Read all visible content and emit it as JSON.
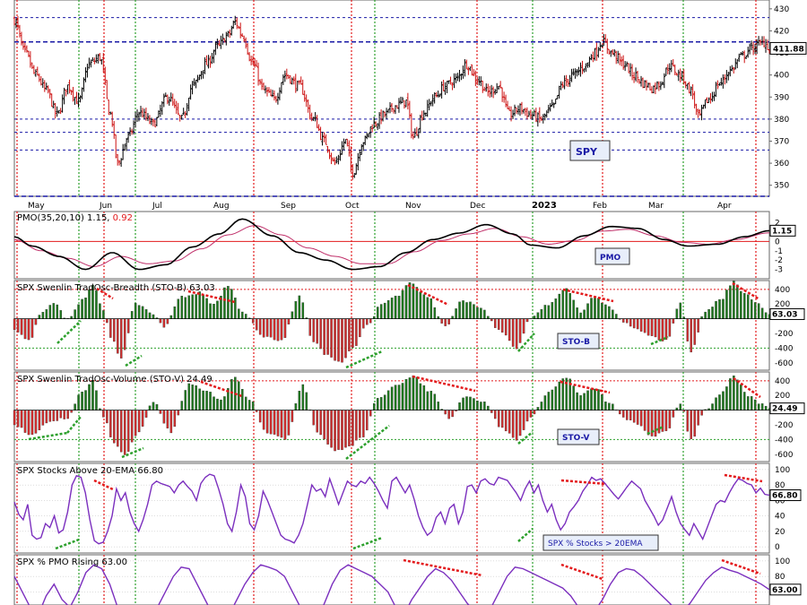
{
  "chart_data": [
    {
      "id": "spy",
      "type": "candlestick",
      "label": "SPY",
      "last_value": "411.88",
      "y_ticks": [
        350,
        360,
        370,
        380,
        390,
        400,
        410,
        420,
        430
      ],
      "ylim": [
        345,
        434
      ],
      "h_lines": [
        426,
        415,
        380,
        374,
        366,
        345
      ],
      "x_labels": [
        "May",
        "Jun",
        "Jul",
        "Aug",
        "Sep",
        "Oct",
        "Nov",
        "Dec",
        "2023",
        "Feb",
        "Mar",
        "Apr"
      ],
      "close_path": [
        [
          0,
          425
        ],
        [
          6,
          410
        ],
        [
          12,
          400
        ],
        [
          18,
          393
        ],
        [
          24,
          382
        ],
        [
          30,
          395
        ],
        [
          36,
          388
        ],
        [
          42,
          405
        ],
        [
          48,
          408
        ],
        [
          54,
          382
        ],
        [
          58,
          360
        ],
        [
          64,
          372
        ],
        [
          70,
          383
        ],
        [
          78,
          378
        ],
        [
          86,
          390
        ],
        [
          94,
          380
        ],
        [
          100,
          395
        ],
        [
          108,
          405
        ],
        [
          114,
          413
        ],
        [
          120,
          418
        ],
        [
          124,
          424
        ],
        [
          128,
          418
        ],
        [
          134,
          405
        ],
        [
          140,
          393
        ],
        [
          146,
          389
        ],
        [
          152,
          400
        ],
        [
          160,
          395
        ],
        [
          168,
          380
        ],
        [
          174,
          370
        ],
        [
          180,
          360
        ],
        [
          186,
          370
        ],
        [
          190,
          356
        ],
        [
          196,
          370
        ],
        [
          202,
          378
        ],
        [
          208,
          382
        ],
        [
          214,
          386
        ],
        [
          220,
          388
        ],
        [
          224,
          372
        ],
        [
          230,
          383
        ],
        [
          236,
          390
        ],
        [
          242,
          395
        ],
        [
          248,
          398
        ],
        [
          254,
          405
        ],
        [
          260,
          398
        ],
        [
          266,
          392
        ],
        [
          272,
          395
        ],
        [
          278,
          382
        ],
        [
          284,
          385
        ],
        [
          290,
          382
        ],
        [
          296,
          380
        ],
        [
          302,
          385
        ],
        [
          308,
          396
        ],
        [
          314,
          400
        ],
        [
          320,
          404
        ],
        [
          326,
          410
        ],
        [
          330,
          415
        ],
        [
          336,
          410
        ],
        [
          342,
          405
        ],
        [
          348,
          400
        ],
        [
          354,
          396
        ],
        [
          358,
          394
        ],
        [
          362,
          396
        ],
        [
          368,
          404
        ],
        [
          374,
          400
        ],
        [
          380,
          393
        ],
        [
          384,
          381
        ],
        [
          390,
          389
        ],
        [
          396,
          396
        ],
        [
          402,
          402
        ],
        [
          408,
          408
        ],
        [
          414,
          412
        ],
        [
          418,
          414
        ],
        [
          422,
          415
        ],
        [
          424,
          411
        ]
      ]
    },
    {
      "id": "pmo",
      "type": "line",
      "title_main": "PMO(35,20,10) 1.15, ",
      "title_red": "0.92",
      "label": "PMO",
      "last_value": "1.15",
      "y_ticks": [
        2,
        1,
        0,
        -1,
        -2,
        -3
      ],
      "ylim": [
        -4,
        3.2
      ],
      "zero_line": 0,
      "pmo": [
        [
          0,
          0.5
        ],
        [
          10,
          -0.5
        ],
        [
          25,
          -1.6
        ],
        [
          40,
          -3.0
        ],
        [
          55,
          -1.2
        ],
        [
          70,
          -3.0
        ],
        [
          85,
          -2.5
        ],
        [
          100,
          -0.6
        ],
        [
          115,
          0.8
        ],
        [
          128,
          2.4
        ],
        [
          145,
          0.6
        ],
        [
          160,
          -1.2
        ],
        [
          175,
          -2.0
        ],
        [
          190,
          -3.0
        ],
        [
          205,
          -2.7
        ],
        [
          220,
          -1.2
        ],
        [
          235,
          0.2
        ],
        [
          250,
          0.9
        ],
        [
          265,
          1.8
        ],
        [
          280,
          0.8
        ],
        [
          290,
          -0.4
        ],
        [
          305,
          -0.7
        ],
        [
          320,
          0.6
        ],
        [
          335,
          1.6
        ],
        [
          350,
          1.4
        ],
        [
          365,
          0.2
        ],
        [
          378,
          -0.5
        ],
        [
          395,
          -0.3
        ],
        [
          410,
          0.5
        ],
        [
          424,
          1.15
        ]
      ],
      "signal": [
        [
          0,
          0.2
        ],
        [
          15,
          -1.0
        ],
        [
          30,
          -1.8
        ],
        [
          45,
          -2.7
        ],
        [
          60,
          -1.6
        ],
        [
          75,
          -2.4
        ],
        [
          90,
          -2.1
        ],
        [
          105,
          -0.8
        ],
        [
          120,
          0.7
        ],
        [
          135,
          1.7
        ],
        [
          150,
          0.7
        ],
        [
          165,
          -0.7
        ],
        [
          180,
          -1.6
        ],
        [
          195,
          -2.4
        ],
        [
          210,
          -2.4
        ],
        [
          225,
          -1.1
        ],
        [
          240,
          0.1
        ],
        [
          255,
          0.8
        ],
        [
          270,
          1.4
        ],
        [
          285,
          0.5
        ],
        [
          300,
          -0.3
        ],
        [
          315,
          0.1
        ],
        [
          330,
          1.1
        ],
        [
          345,
          1.3
        ],
        [
          360,
          0.6
        ],
        [
          375,
          -0.1
        ],
        [
          390,
          -0.3
        ],
        [
          405,
          0.2
        ],
        [
          424,
          0.92
        ]
      ]
    },
    {
      "id": "stob",
      "type": "histogram",
      "title": "SPX Swenlin TradOsc-Breadth (STO-B) 63.03",
      "label": "STO-B",
      "last_value": "63.03",
      "y_ticks": [
        400,
        200,
        -200,
        -400,
        -600
      ],
      "ylim": [
        -700,
        520
      ],
      "h_lines": [
        400,
        -400
      ],
      "shape": [
        [
          0,
          -150
        ],
        [
          8,
          -300
        ],
        [
          16,
          100
        ],
        [
          22,
          200
        ],
        [
          30,
          0
        ],
        [
          38,
          250
        ],
        [
          44,
          450
        ],
        [
          50,
          100
        ],
        [
          55,
          -300
        ],
        [
          60,
          -550
        ],
        [
          68,
          200
        ],
        [
          76,
          100
        ],
        [
          84,
          -100
        ],
        [
          94,
          300
        ],
        [
          104,
          350
        ],
        [
          112,
          200
        ],
        [
          120,
          450
        ],
        [
          128,
          100
        ],
        [
          140,
          -250
        ],
        [
          150,
          -300
        ],
        [
          160,
          300
        ],
        [
          168,
          -300
        ],
        [
          176,
          -500
        ],
        [
          184,
          -600
        ],
        [
          190,
          -400
        ],
        [
          198,
          -100
        ],
        [
          206,
          200
        ],
        [
          214,
          300
        ],
        [
          222,
          500
        ],
        [
          232,
          300
        ],
        [
          242,
          -100
        ],
        [
          252,
          250
        ],
        [
          262,
          150
        ],
        [
          272,
          -150
        ],
        [
          282,
          -400
        ],
        [
          290,
          0
        ],
        [
          300,
          200
        ],
        [
          310,
          400
        ],
        [
          318,
          100
        ],
        [
          326,
          300
        ],
        [
          334,
          150
        ],
        [
          342,
          -50
        ],
        [
          350,
          -150
        ],
        [
          358,
          -250
        ],
        [
          366,
          -300
        ],
        [
          374,
          200
        ],
        [
          380,
          -450
        ],
        [
          388,
          100
        ],
        [
          396,
          250
        ],
        [
          404,
          500
        ],
        [
          410,
          350
        ],
        [
          418,
          200
        ],
        [
          424,
          63
        ]
      ]
    },
    {
      "id": "stov",
      "type": "histogram",
      "title": "SPX Swenlin TradOsc-Volume (STO-V) 24.49",
      "label": "STO-V",
      "last_value": "24.49",
      "y_ticks": [
        400,
        200,
        -200,
        -400,
        -600
      ],
      "ylim": [
        -700,
        520
      ],
      "h_lines": [
        400,
        -400
      ],
      "shape": [
        [
          0,
          -200
        ],
        [
          10,
          -350
        ],
        [
          20,
          -150
        ],
        [
          30,
          -100
        ],
        [
          38,
          250
        ],
        [
          44,
          400
        ],
        [
          50,
          -100
        ],
        [
          56,
          -450
        ],
        [
          62,
          -600
        ],
        [
          70,
          -300
        ],
        [
          78,
          100
        ],
        [
          88,
          -300
        ],
        [
          98,
          350
        ],
        [
          108,
          250
        ],
        [
          116,
          150
        ],
        [
          124,
          450
        ],
        [
          132,
          150
        ],
        [
          142,
          -300
        ],
        [
          152,
          -400
        ],
        [
          162,
          350
        ],
        [
          170,
          -300
        ],
        [
          180,
          -550
        ],
        [
          188,
          -500
        ],
        [
          196,
          -350
        ],
        [
          204,
          150
        ],
        [
          214,
          350
        ],
        [
          224,
          450
        ],
        [
          234,
          250
        ],
        [
          244,
          -100
        ],
        [
          254,
          200
        ],
        [
          264,
          100
        ],
        [
          274,
          -250
        ],
        [
          282,
          -400
        ],
        [
          290,
          -100
        ],
        [
          300,
          250
        ],
        [
          310,
          450
        ],
        [
          318,
          200
        ],
        [
          326,
          300
        ],
        [
          334,
          100
        ],
        [
          342,
          -100
        ],
        [
          350,
          -200
        ],
        [
          358,
          -350
        ],
        [
          366,
          -300
        ],
        [
          374,
          100
        ],
        [
          380,
          -400
        ],
        [
          388,
          0
        ],
        [
          396,
          200
        ],
        [
          404,
          450
        ],
        [
          412,
          200
        ],
        [
          418,
          100
        ],
        [
          424,
          24
        ]
      ]
    },
    {
      "id": "ema",
      "type": "line",
      "title": "SPX Stocks Above 20-EMA 66.80",
      "label": "SPX % Stocks > 20EMA",
      "last_value": "66.80",
      "y_ticks": [
        100,
        80,
        60,
        40,
        20,
        0
      ],
      "ylim": [
        -8,
        108
      ],
      "values": [
        58,
        42,
        35,
        55,
        15,
        10,
        12,
        30,
        25,
        40,
        18,
        22,
        45,
        80,
        92,
        90,
        70,
        35,
        8,
        4,
        6,
        20,
        40,
        75,
        60,
        70,
        45,
        30,
        20,
        35,
        55,
        80,
        85,
        82,
        80,
        78,
        70,
        80,
        85,
        78,
        72,
        60,
        82,
        90,
        94,
        92,
        75,
        55,
        30,
        20,
        45,
        80,
        65,
        30,
        22,
        40,
        72,
        60,
        45,
        30,
        15,
        10,
        8,
        5,
        15,
        30,
        55,
        80,
        72,
        75,
        65,
        88,
        72,
        55,
        70,
        85,
        80,
        78,
        85,
        82,
        90,
        82,
        72,
        60,
        50,
        85,
        90,
        80,
        70,
        80,
        62,
        40,
        25,
        15,
        20,
        38,
        45,
        30,
        50,
        55,
        30,
        45,
        78,
        80,
        70,
        85,
        88,
        82,
        80,
        90,
        88,
        86,
        78,
        70,
        60,
        75,
        85,
        70,
        80,
        60,
        45,
        55,
        35,
        22,
        30,
        45,
        52,
        60,
        72,
        80,
        90,
        86,
        88,
        82,
        75,
        68,
        62,
        70,
        78,
        85,
        80,
        75,
        60,
        50,
        40,
        28,
        35,
        50,
        65,
        45,
        30,
        22,
        15,
        30,
        20,
        10,
        25,
        40,
        55,
        60,
        58,
        70,
        80,
        88,
        86,
        82,
        80,
        70,
        76,
        68,
        66.8
      ]
    },
    {
      "id": "pmorising",
      "type": "line",
      "title": "SPX % PMO Rising 63.00",
      "last_value": "63.00",
      "y_ticks": [
        100,
        80,
        60
      ],
      "ylim": [
        -8,
        108
      ],
      "values": [
        80,
        60,
        40,
        30,
        55,
        70,
        50,
        40,
        60,
        85,
        95,
        90,
        70,
        40,
        30,
        20,
        15,
        25,
        40,
        60,
        80,
        92,
        90,
        70,
        50,
        30,
        20,
        30,
        50,
        70,
        85,
        95,
        92,
        88,
        80,
        60,
        40,
        30,
        25,
        45,
        70,
        88,
        95,
        90,
        85,
        80,
        70,
        60,
        40,
        30,
        50,
        65,
        80,
        90,
        85,
        75,
        60,
        45,
        35,
        30,
        40,
        60,
        80,
        92,
        90,
        85,
        80,
        75,
        70,
        65,
        55,
        40,
        30,
        35,
        50,
        70,
        85,
        90,
        88,
        80,
        70,
        60,
        50,
        40,
        35,
        45,
        60,
        75,
        85,
        92,
        88,
        85,
        80,
        75,
        70,
        63
      ]
    }
  ],
  "colors": {
    "up": "#1e7a1e",
    "down": "#d32f2f",
    "price_down": "#cc1111",
    "grid_blue": "#1a1aa6",
    "green_dot": "#2ca02c",
    "red_dot": "#e31a1c",
    "purple": "#7b2fbe",
    "pmo_signal": "#c0306a",
    "label_bg": "#c8d7f0"
  }
}
